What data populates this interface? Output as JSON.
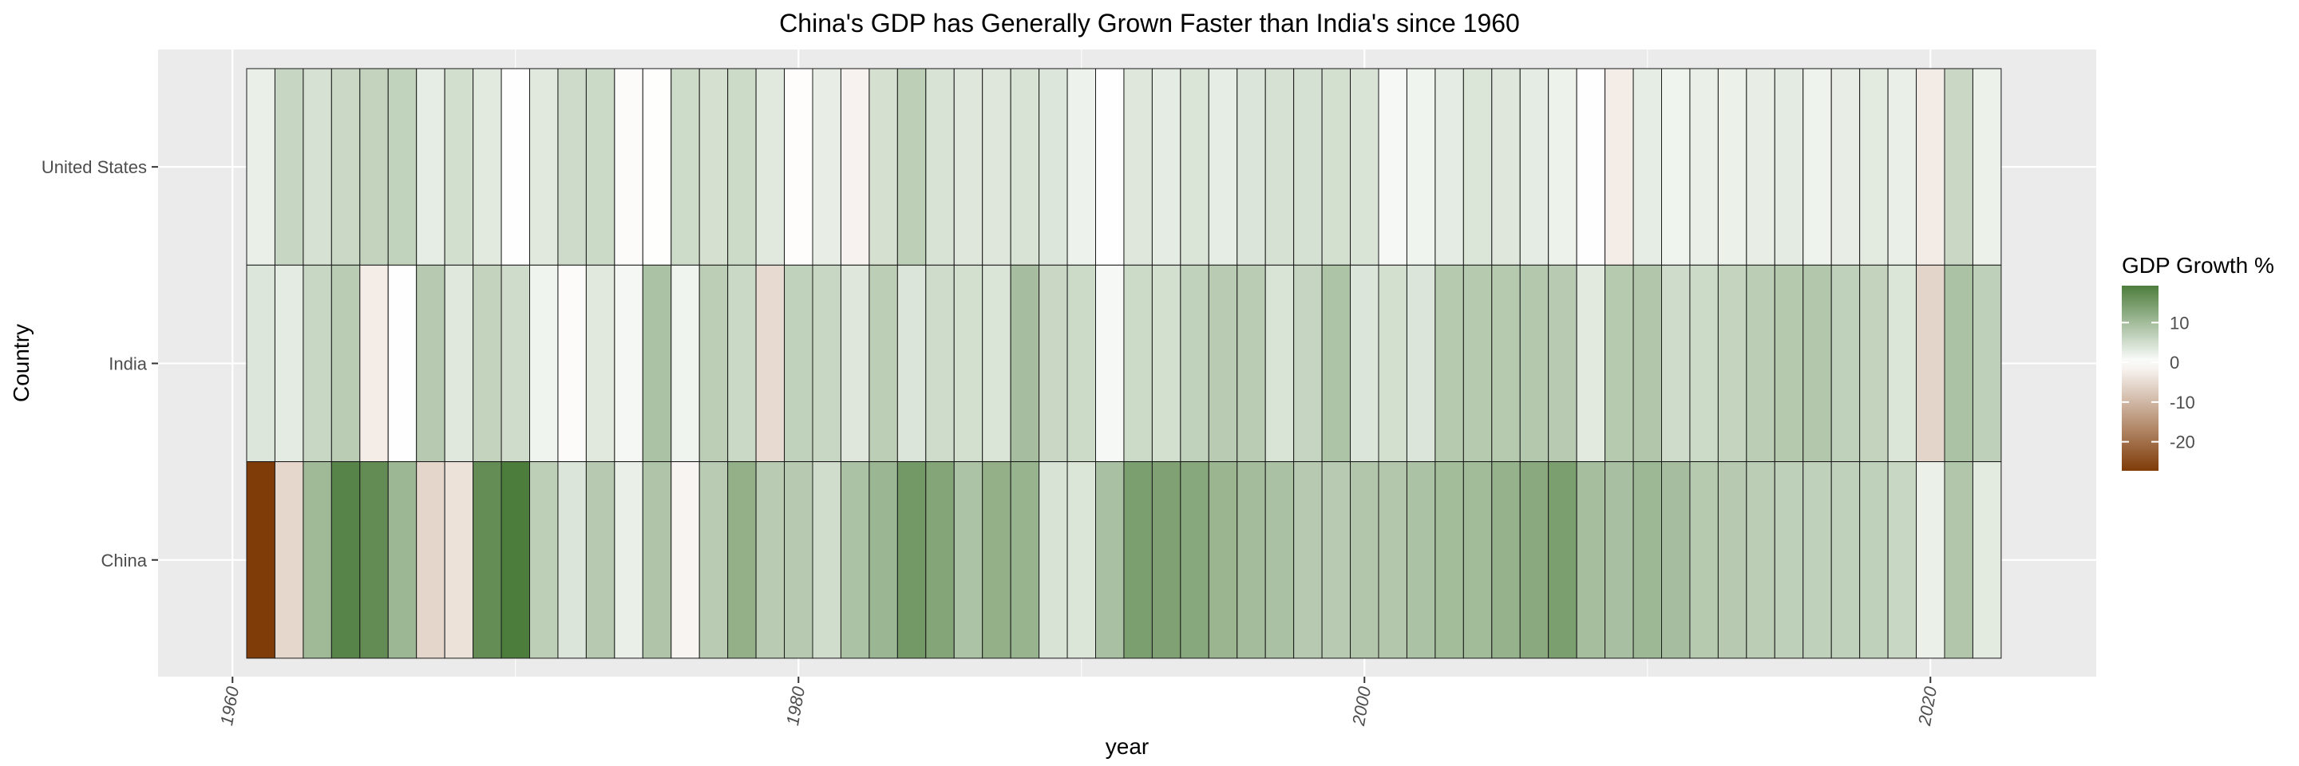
{
  "chart_data": {
    "type": "heatmap",
    "title": "China's GDP has Generally Grown Faster than India's since 1960",
    "xlabel": "year",
    "ylabel": "Country",
    "x_ticks": [
      "1960",
      "1980",
      "2000",
      "2020"
    ],
    "xlim": [
      1959.5,
      2025
    ],
    "countries": [
      "United States",
      "India",
      "China"
    ],
    "years": [
      1961,
      1962,
      1963,
      1964,
      1965,
      1966,
      1967,
      1968,
      1969,
      1970,
      1971,
      1972,
      1973,
      1974,
      1975,
      1976,
      1977,
      1978,
      1979,
      1980,
      1981,
      1982,
      1983,
      1984,
      1985,
      1986,
      1987,
      1988,
      1989,
      1990,
      1991,
      1992,
      1993,
      1994,
      1995,
      1996,
      1997,
      1998,
      1999,
      2000,
      2001,
      2002,
      2003,
      2004,
      2005,
      2006,
      2007,
      2008,
      2009,
      2010,
      2011,
      2012,
      2013,
      2014,
      2015,
      2016,
      2017,
      2018,
      2019,
      2020,
      2021,
      2022
    ],
    "values": {
      "United States": [
        2.3,
        6.1,
        4.4,
        5.8,
        6.5,
        6.6,
        2.7,
        4.9,
        3.1,
        0.2,
        3.3,
        5.3,
        5.6,
        -0.5,
        -0.2,
        5.4,
        4.6,
        5.5,
        3.2,
        -0.3,
        2.5,
        -1.8,
        4.6,
        7.2,
        4.2,
        3.5,
        3.5,
        4.2,
        3.7,
        1.9,
        -0.1,
        3.5,
        2.8,
        4.0,
        2.7,
        3.8,
        4.4,
        4.5,
        4.8,
        4.1,
        1.0,
        1.7,
        2.8,
        3.9,
        3.5,
        2.8,
        2.0,
        0.1,
        -2.6,
        2.7,
        1.6,
        2.3,
        2.1,
        2.5,
        2.9,
        1.8,
        2.5,
        3.0,
        2.3,
        -2.8,
        5.9,
        2.1
      ],
      "India": [
        3.7,
        2.9,
        6.0,
        7.5,
        -2.6,
        -0.1,
        7.8,
        3.4,
        6.5,
        5.2,
        1.6,
        -0.6,
        3.3,
        1.2,
        9.1,
        1.7,
        7.3,
        5.7,
        -5.2,
        6.7,
        6.0,
        3.5,
        7.3,
        3.8,
        5.2,
        4.8,
        4.0,
        9.6,
        5.9,
        5.5,
        1.1,
        5.5,
        4.8,
        6.7,
        7.6,
        7.5,
        4.1,
        6.2,
        8.8,
        3.8,
        4.8,
        3.8,
        7.9,
        7.9,
        7.9,
        8.1,
        7.7,
        3.1,
        7.9,
        8.5,
        5.2,
        5.5,
        6.4,
        7.4,
        8.0,
        8.3,
        6.8,
        6.5,
        3.9,
        -5.8,
        9.1,
        7.0
      ],
      "China": [
        -27.3,
        -5.6,
        10.3,
        18.2,
        17.0,
        10.7,
        -5.7,
        -4.1,
        16.9,
        19.3,
        7.1,
        3.8,
        7.8,
        2.3,
        8.7,
        -1.6,
        7.6,
        11.7,
        7.6,
        7.8,
        5.1,
        9.0,
        10.8,
        15.2,
        13.4,
        8.9,
        11.7,
        11.2,
        4.2,
        3.9,
        9.3,
        14.2,
        13.9,
        13.0,
        11.0,
        9.9,
        9.2,
        7.8,
        7.7,
        8.5,
        8.3,
        9.1,
        10.0,
        10.1,
        11.4,
        12.7,
        14.2,
        9.7,
        9.4,
        10.6,
        9.6,
        7.9,
        7.8,
        7.4,
        7.0,
        6.8,
        6.9,
        6.8,
        6.0,
        2.2,
        8.4,
        3.0
      ]
    },
    "legend": {
      "title": "GDP Growth %",
      "ticks": [
        10,
        0,
        -10,
        -20
      ],
      "tick_labels": [
        "10",
        "0",
        "-10",
        "-20"
      ],
      "min": -27.3,
      "max": 19.3,
      "colors": {
        "low": "#7f3b08",
        "mid": "#ffffff",
        "high": "#4d7d3d"
      },
      "placement": "right"
    },
    "panel_background": "#ebebeb",
    "grid_color": "#ffffff",
    "tile_border": "#1a1a1a"
  }
}
